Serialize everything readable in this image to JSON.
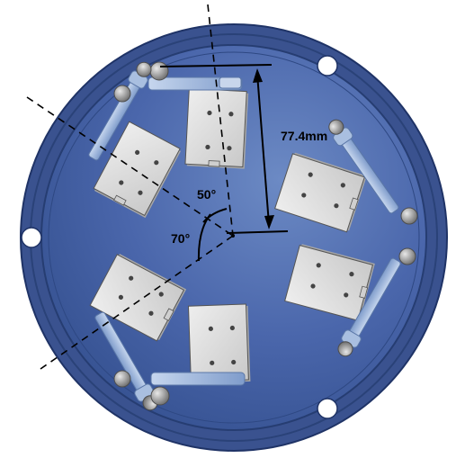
{
  "annotations": {
    "dimension_label": "77.4mm",
    "angle_inner": "50°",
    "angle_outer": "70°"
  },
  "colors": {
    "background": "#ffffff",
    "disc_outer": "#3b5494",
    "disc_inner": "#3a5aa3",
    "ring_line": "#243a73",
    "module_face": "#dcdcdc",
    "module_shadow": "#b9b9b9",
    "bracket": "#9eb6d8",
    "bracket_edge": "#6f88b4",
    "roller": "#8f8f8f",
    "annotation": "#000000"
  },
  "modules": [
    {
      "name": "module-top-center"
    },
    {
      "name": "module-upper-left"
    },
    {
      "name": "module-right-upper"
    },
    {
      "name": "module-right-lower"
    },
    {
      "name": "module-lower-left"
    },
    {
      "name": "module-bottom-center"
    }
  ]
}
